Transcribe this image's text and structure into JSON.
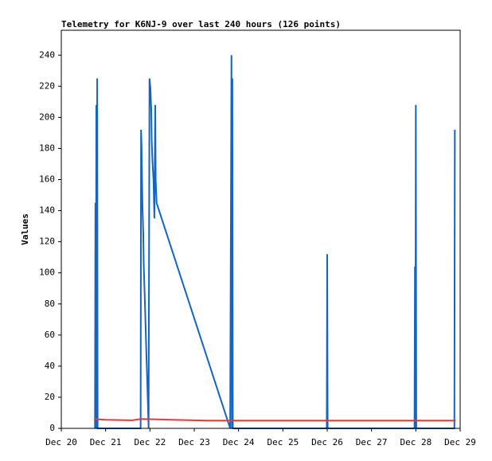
{
  "chart_data": {
    "type": "line",
    "title": "Telemetry for K6NJ-9 over last 240 hours (126 points)",
    "y_label": "Values",
    "xlim": [
      20,
      29
    ],
    "xticks": [
      {
        "value": 20,
        "label": "Dec 20"
      },
      {
        "value": 21,
        "label": "Dec 21"
      },
      {
        "value": 22,
        "label": "Dec 22"
      },
      {
        "value": 23,
        "label": "Dec 23"
      },
      {
        "value": 24,
        "label": "Dec 24"
      },
      {
        "value": 25,
        "label": "Dec 25"
      },
      {
        "value": 26,
        "label": "Dec 26"
      },
      {
        "value": 27,
        "label": "Dec 27"
      },
      {
        "value": 28,
        "label": "Dec 28"
      },
      {
        "value": 29,
        "label": "Dec 29"
      }
    ],
    "ylim": [
      0,
      256
    ],
    "yticks": [
      0,
      20,
      40,
      60,
      80,
      100,
      120,
      140,
      160,
      180,
      200,
      220,
      240
    ],
    "series": [
      {
        "color": "#1565c0",
        "x": [
          20.76,
          20.77,
          20.78,
          20.79,
          20.8,
          20.81,
          20.82,
          21.79,
          21.8,
          21.81,
          21.82,
          21.83,
          21.85,
          21.86,
          21.88,
          21.9,
          21.92,
          21.94,
          21.96,
          21.97,
          21.99,
          22.01,
          22.03,
          22.04,
          22.06,
          22.08,
          22.1,
          22.12,
          22.13,
          22.15,
          23.81,
          23.84,
          23.85,
          23.86,
          23.87,
          25.99,
          26.0,
          26.01,
          27.97,
          27.98,
          27.99,
          28.0,
          28.01,
          28.87,
          28.88
        ],
        "values": [
          0,
          145,
          0,
          208,
          0,
          225,
          0,
          0,
          192,
          183,
          163,
          145,
          125,
          105,
          87,
          68,
          48,
          30,
          10,
          0,
          225,
          219,
          205,
          185,
          170,
          160,
          135,
          208,
          160,
          145,
          0,
          240,
          0,
          225,
          0,
          0,
          112,
          0,
          0,
          104,
          0,
          208,
          0,
          0,
          192
        ]
      },
      {
        "color": "#e53935",
        "x": [
          20.74,
          21.0,
          21.6,
          21.8,
          22.1,
          22.5,
          23.3,
          28.9
        ],
        "values": [
          6,
          5.5,
          5.2,
          6,
          5.8,
          5.5,
          5,
          5
        ]
      }
    ]
  }
}
